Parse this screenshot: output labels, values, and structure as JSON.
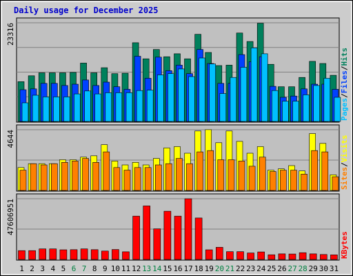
{
  "title": "Daily usage for December 2025",
  "colors": {
    "title": "#0000cc",
    "hits": "#00805c",
    "files": "#0040ff",
    "pages": "#00c0ff",
    "visits": "#ffff00",
    "sites": "#ff8000",
    "kbytes": "#ff0000",
    "weekend": "#008040",
    "weekday": "#000000",
    "panel_bg": "#c0c0c0",
    "frame_bg": "#cccccc",
    "grid": "#808080"
  },
  "legend": {
    "panel1": {
      "hits": "Hits",
      "files": "Files",
      "pages": "Pages",
      "sep": "/"
    },
    "panel2": {
      "visits": "Visits",
      "sites": "Sites",
      "sep": "/"
    },
    "panel3": {
      "kbytes": "KBytes"
    }
  },
  "chart_data": [
    {
      "type": "bar",
      "panel": "hits-files-pages",
      "ymax_label": "23316",
      "ymax": 23316,
      "ylim": [
        0,
        23316
      ],
      "categories": [
        "1",
        "2",
        "3",
        "4",
        "5",
        "6",
        "7",
        "8",
        "9",
        "10",
        "11",
        "12",
        "13",
        "14",
        "15",
        "16",
        "17",
        "18",
        "19",
        "20",
        "21",
        "22",
        "23",
        "24",
        "25",
        "26",
        "27",
        "28",
        "29",
        "30",
        "31"
      ],
      "weekend_days": [
        "6",
        "7",
        "13",
        "14",
        "20",
        "21",
        "27",
        "28"
      ],
      "series": [
        {
          "name": "Hits",
          "values": [
            9400,
            10800,
            11500,
            11500,
            11500,
            11600,
            13800,
            11500,
            12700,
            11300,
            11400,
            18600,
            14800,
            17000,
            15300,
            16000,
            14800,
            20600,
            16300,
            13200,
            13300,
            20900,
            18900,
            23200,
            13500,
            8200,
            8200,
            10400,
            14200,
            13700,
            10900
          ]
        },
        {
          "name": "Files",
          "values": [
            7500,
            7700,
            9000,
            9000,
            8500,
            8800,
            9800,
            8500,
            9300,
            8200,
            7600,
            15400,
            10200,
            15200,
            12000,
            13300,
            11300,
            17000,
            13700,
            9000,
            9000,
            15800,
            14100,
            15300,
            8300,
            5700,
            6000,
            7700,
            8800,
            8800,
            7600
          ]
        },
        {
          "name": "Pages",
          "values": [
            4400,
            6200,
            5800,
            5800,
            5800,
            6500,
            7200,
            6500,
            6800,
            6800,
            6800,
            7300,
            7400,
            11000,
            11300,
            12400,
            10600,
            15000,
            13600,
            6600,
            10400,
            12800,
            17400,
            16000,
            7300,
            4800,
            4800,
            6300,
            8500,
            10200,
            5700
          ]
        }
      ]
    },
    {
      "type": "bar",
      "panel": "visits-sites",
      "ymax_label": "4644",
      "ymax": 4644,
      "ylim": [
        0,
        4644
      ],
      "categories": [
        "1",
        "2",
        "3",
        "4",
        "5",
        "6",
        "7",
        "8",
        "9",
        "10",
        "11",
        "12",
        "13",
        "14",
        "15",
        "16",
        "17",
        "18",
        "19",
        "20",
        "21",
        "22",
        "23",
        "24",
        "25",
        "26",
        "27",
        "28",
        "29",
        "30",
        "31"
      ],
      "series": [
        {
          "name": "Visits",
          "values": [
            1750,
            2050,
            2050,
            2050,
            2350,
            2350,
            2550,
            2650,
            3500,
            2250,
            1950,
            2150,
            1950,
            2450,
            3250,
            3350,
            2850,
            4550,
            4650,
            3650,
            4550,
            3750,
            2850,
            3350,
            1550,
            1650,
            1900,
            1500,
            4350,
            3600,
            1200
          ]
        },
        {
          "name": "Sites",
          "values": [
            1550,
            2050,
            1950,
            2050,
            2150,
            2250,
            2450,
            2150,
            2950,
            1750,
            1550,
            1750,
            1750,
            1950,
            2050,
            2450,
            2050,
            2950,
            3050,
            2350,
            2350,
            2250,
            1850,
            2550,
            1450,
            1550,
            1550,
            1250,
            3050,
            2950,
            1050
          ]
        }
      ]
    },
    {
      "type": "bar",
      "panel": "kbytes",
      "ymax_label": "47606951",
      "ymax": 47606951,
      "ylim": [
        0,
        47606951
      ],
      "categories": [
        "1",
        "2",
        "3",
        "4",
        "5",
        "6",
        "7",
        "8",
        "9",
        "10",
        "11",
        "12",
        "13",
        "14",
        "15",
        "16",
        "17",
        "18",
        "19",
        "20",
        "21",
        "22",
        "23",
        "24",
        "25",
        "26",
        "27",
        "28",
        "29",
        "30",
        "31"
      ],
      "series": [
        {
          "name": "KBytes",
          "values": [
            6900000,
            6900000,
            8300000,
            8300000,
            7600000,
            7700000,
            8300000,
            7700000,
            6600000,
            7800000,
            6000000,
            34000000,
            42000000,
            24000000,
            37800000,
            34000000,
            47600000,
            32500000,
            7600000,
            9500000,
            6100000,
            6100000,
            5100000,
            5900000,
            3700000,
            4400000,
            4300000,
            5300000,
            4400000,
            3900000,
            3600000
          ]
        }
      ]
    }
  ]
}
